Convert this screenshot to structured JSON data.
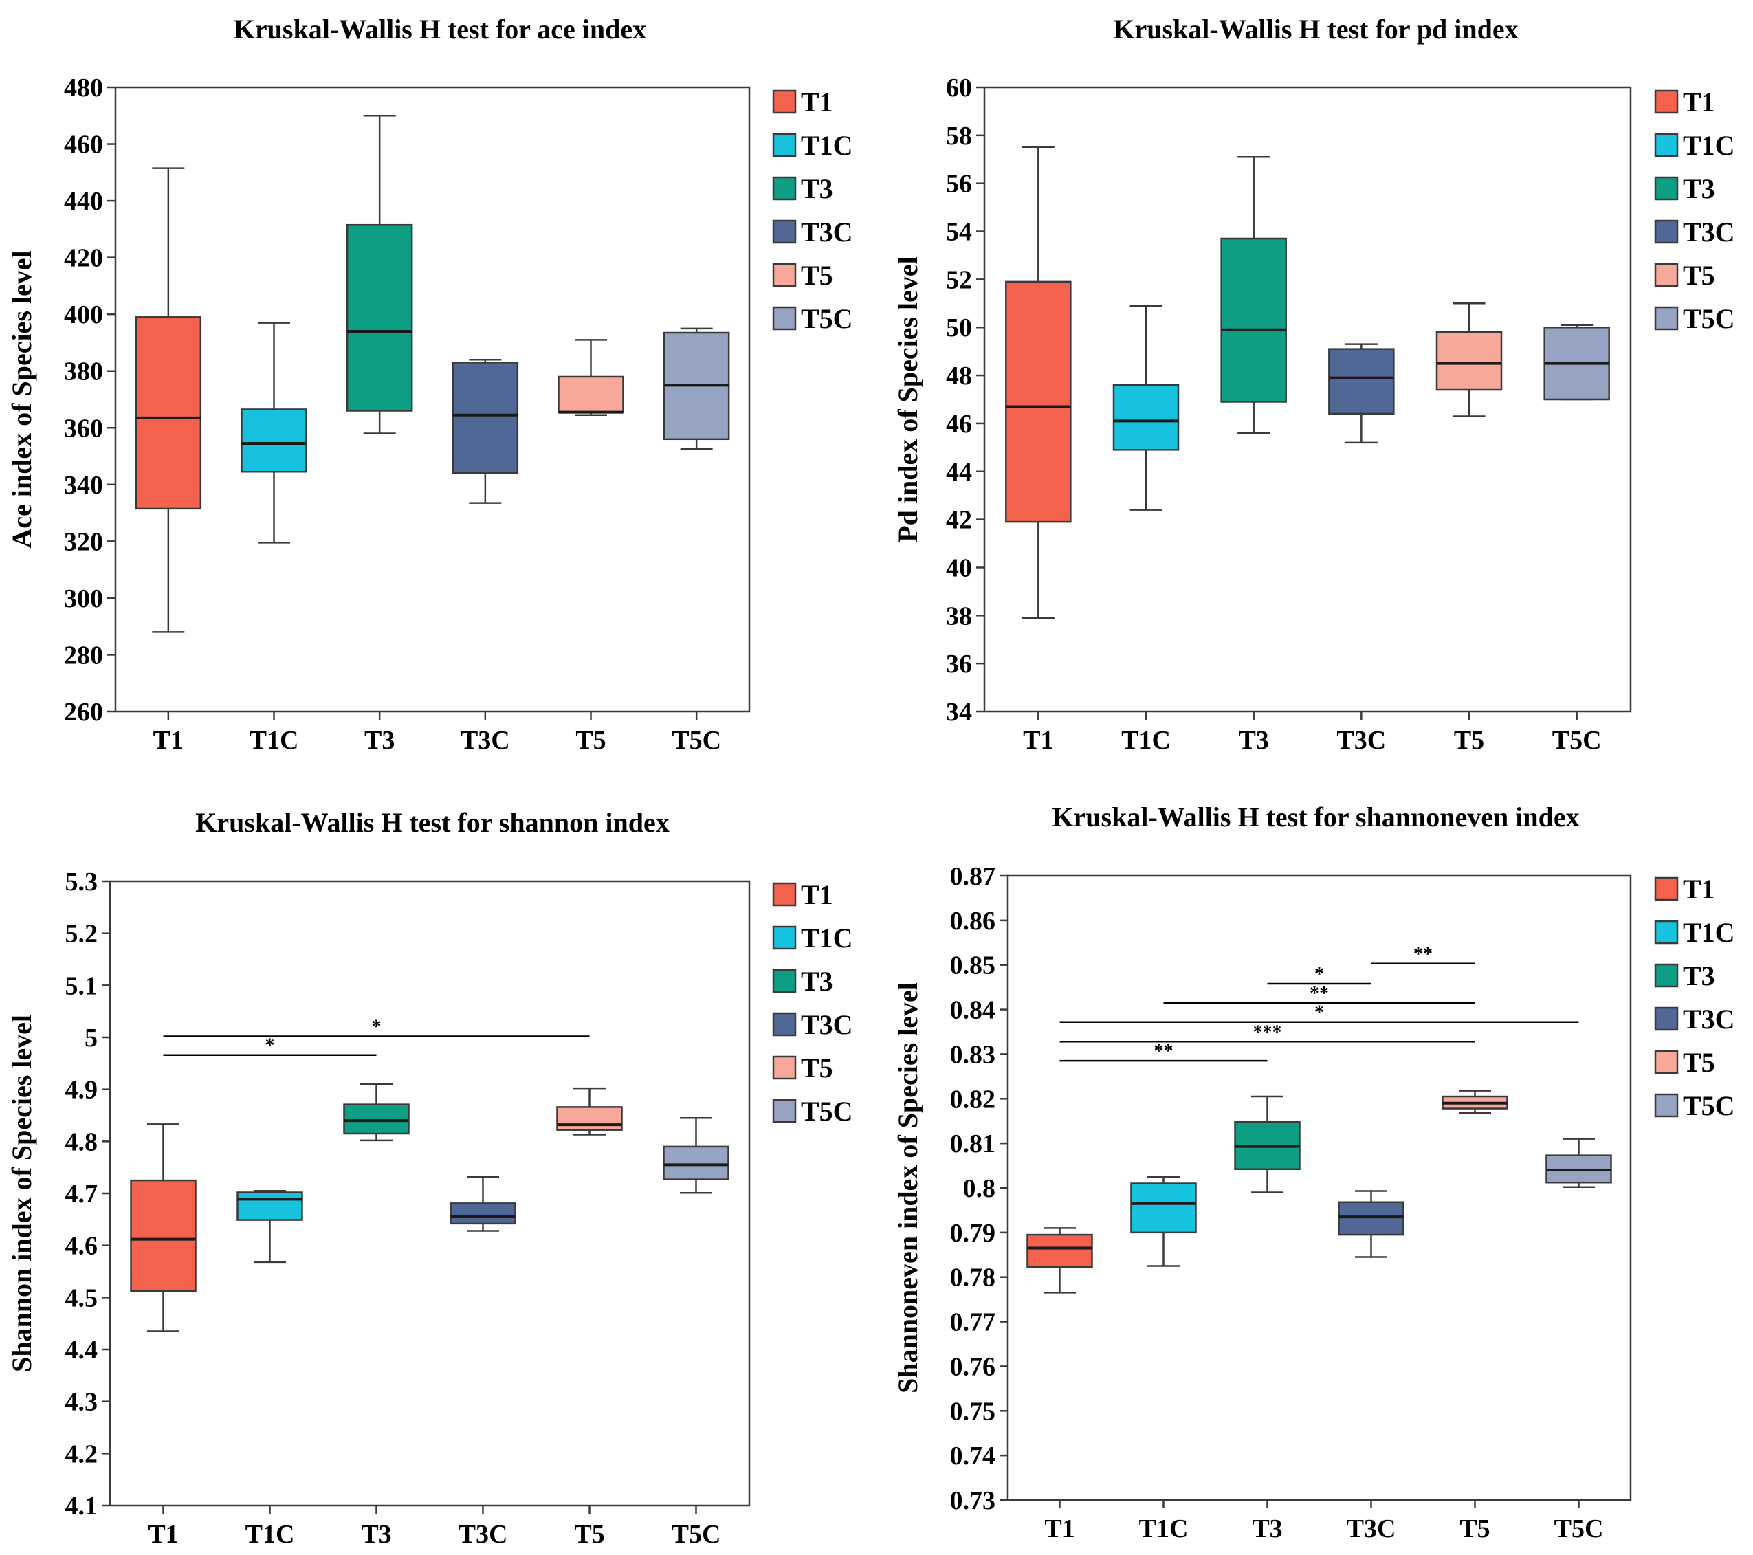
{
  "colors": {
    "T1": "#f4624e",
    "T1C": "#17c2de",
    "T3": "#0e9e84",
    "T3C": "#4f6895",
    "T5": "#f8a898",
    "T5C": "#97a3c2"
  },
  "chart_data": [
    {
      "type": "box",
      "title": "Kruskal-Wallis H test for ace index",
      "ylabel": "Ace index of Species level",
      "categories": [
        "T1",
        "T1C",
        "T3",
        "T3C",
        "T5",
        "T5C"
      ],
      "legend": [
        "T1",
        "T1C",
        "T3",
        "T3C",
        "T5",
        "T5C"
      ],
      "legend_position": "right",
      "ylim": [
        260,
        480
      ],
      "yticks": [
        260,
        280,
        300,
        320,
        340,
        360,
        380,
        400,
        420,
        440,
        460,
        480
      ],
      "ytick_labels": [
        "260",
        "280",
        "300",
        "320",
        "340",
        "360",
        "380",
        "400",
        "420",
        "440",
        "460",
        "480"
      ],
      "boxes": [
        {
          "name": "T1",
          "min": 288,
          "q1": 331.5,
          "median": 363.5,
          "q3": 399,
          "max": 451.5
        },
        {
          "name": "T1C",
          "min": 319.5,
          "q1": 344.5,
          "median": 354.5,
          "q3": 366.5,
          "max": 397
        },
        {
          "name": "T3",
          "min": 358,
          "q1": 366,
          "median": 394,
          "q3": 431.5,
          "max": 470
        },
        {
          "name": "T3C",
          "min": 333.5,
          "q1": 344,
          "median": 364.5,
          "q3": 383,
          "max": 384
        },
        {
          "name": "T5",
          "min": 364.5,
          "q1": 365.5,
          "median": 365.5,
          "q3": 378,
          "max": 391
        },
        {
          "name": "T5C",
          "min": 352.5,
          "q1": 356,
          "median": 375,
          "q3": 393.5,
          "max": 395
        }
      ],
      "significance": []
    },
    {
      "type": "box",
      "title": "Kruskal-Wallis H test for pd index",
      "ylabel": "Pd index of Species level",
      "categories": [
        "T1",
        "T1C",
        "T3",
        "T3C",
        "T5",
        "T5C"
      ],
      "legend": [
        "T1",
        "T1C",
        "T3",
        "T3C",
        "T5",
        "T5C"
      ],
      "legend_position": "right",
      "ylim": [
        34,
        60
      ],
      "yticks": [
        34,
        36,
        38,
        40,
        42,
        44,
        46,
        48,
        50,
        52,
        54,
        56,
        58,
        60
      ],
      "ytick_labels": [
        "34",
        "36",
        "38",
        "40",
        "42",
        "44",
        "46",
        "48",
        "50",
        "52",
        "54",
        "56",
        "58",
        "60"
      ],
      "boxes": [
        {
          "name": "T1",
          "min": 37.9,
          "q1": 41.9,
          "median": 46.7,
          "q3": 51.9,
          "max": 57.5
        },
        {
          "name": "T1C",
          "min": 42.4,
          "q1": 44.9,
          "median": 46.1,
          "q3": 47.6,
          "max": 50.9
        },
        {
          "name": "T3",
          "min": 45.6,
          "q1": 46.9,
          "median": 49.9,
          "q3": 53.7,
          "max": 57.1
        },
        {
          "name": "T3C",
          "min": 45.2,
          "q1": 46.4,
          "median": 47.9,
          "q3": 49.1,
          "max": 49.3
        },
        {
          "name": "T5",
          "min": 46.3,
          "q1": 47.4,
          "median": 48.5,
          "q3": 49.8,
          "max": 51.0
        },
        {
          "name": "T5C",
          "min": 47.0,
          "q1": 47.0,
          "median": 48.5,
          "q3": 50.0,
          "max": 50.1
        }
      ],
      "significance": []
    },
    {
      "type": "box",
      "title": "Kruskal-Wallis H test for shannon index",
      "ylabel": "Shannon index of Species level",
      "categories": [
        "T1",
        "T1C",
        "T3",
        "T3C",
        "T5",
        "T5C"
      ],
      "legend": [
        "T1",
        "T1C",
        "T3",
        "T3C",
        "T5",
        "T5C"
      ],
      "legend_position": "right",
      "ylim": [
        4.1,
        5.3
      ],
      "yticks": [
        4.1,
        4.2,
        4.3,
        4.4,
        4.5,
        4.6,
        4.7,
        4.8,
        4.9,
        5.0,
        5.1,
        5.2,
        5.3
      ],
      "ytick_labels": [
        "4.1",
        "4.2",
        "4.3",
        "4.4",
        "4.5",
        "4.6",
        "4.7",
        "4.8",
        "4.9",
        "5",
        "5.1",
        "5.2",
        "5.3"
      ],
      "boxes": [
        {
          "name": "T1",
          "min": 4.435,
          "q1": 4.512,
          "median": 4.612,
          "q3": 4.725,
          "max": 4.833
        },
        {
          "name": "T1C",
          "min": 4.568,
          "q1": 4.649,
          "median": 4.689,
          "q3": 4.702,
          "max": 4.705
        },
        {
          "name": "T3",
          "min": 4.802,
          "q1": 4.815,
          "median": 4.84,
          "q3": 4.871,
          "max": 4.91
        },
        {
          "name": "T3C",
          "min": 4.628,
          "q1": 4.642,
          "median": 4.655,
          "q3": 4.681,
          "max": 4.732
        },
        {
          "name": "T5",
          "min": 4.813,
          "q1": 4.822,
          "median": 4.832,
          "q3": 4.866,
          "max": 4.902
        },
        {
          "name": "T5C",
          "min": 4.701,
          "q1": 4.727,
          "median": 4.755,
          "q3": 4.79,
          "max": 4.845
        }
      ],
      "significance": [
        {
          "from": "T1",
          "to": "T5",
          "label": "*",
          "y": 5.002
        },
        {
          "from": "T1",
          "to": "T3",
          "label": "*",
          "y": 4.966
        }
      ]
    },
    {
      "type": "box",
      "title": "Kruskal-Wallis H test for shannoneven index",
      "ylabel": "Shannoneven index of Species level",
      "categories": [
        "T1",
        "T1C",
        "T3",
        "T3C",
        "T5",
        "T5C"
      ],
      "legend": [
        "T1",
        "T1C",
        "T3",
        "T3C",
        "T5",
        "T5C"
      ],
      "legend_position": "right",
      "ylim": [
        0.73,
        0.87
      ],
      "yticks": [
        0.73,
        0.74,
        0.75,
        0.76,
        0.77,
        0.78,
        0.79,
        0.8,
        0.81,
        0.82,
        0.83,
        0.84,
        0.85,
        0.86,
        0.87
      ],
      "ytick_labels": [
        "0.73",
        "0.74",
        "0.75",
        "0.76",
        "0.77",
        "0.78",
        "0.79",
        "0.8",
        "0.81",
        "0.82",
        "0.83",
        "0.84",
        "0.85",
        "0.86",
        "0.87"
      ],
      "boxes": [
        {
          "name": "T1",
          "min": 0.7765,
          "q1": 0.7823,
          "median": 0.7865,
          "q3": 0.7895,
          "max": 0.791
        },
        {
          "name": "T1C",
          "min": 0.7825,
          "q1": 0.79,
          "median": 0.7965,
          "q3": 0.801,
          "max": 0.8025
        },
        {
          "name": "T3",
          "min": 0.799,
          "q1": 0.8042,
          "median": 0.8093,
          "q3": 0.8148,
          "max": 0.8205
        },
        {
          "name": "T3C",
          "min": 0.7845,
          "q1": 0.7895,
          "median": 0.7935,
          "q3": 0.7968,
          "max": 0.7993
        },
        {
          "name": "T5",
          "min": 0.8168,
          "q1": 0.8178,
          "median": 0.819,
          "q3": 0.8205,
          "max": 0.8218
        },
        {
          "name": "T5C",
          "min": 0.8002,
          "q1": 0.8012,
          "median": 0.804,
          "q3": 0.8073,
          "max": 0.811
        }
      ],
      "significance": [
        {
          "from": "T3C",
          "to": "T5",
          "label": "**",
          "y": 0.8503
        },
        {
          "from": "T3",
          "to": "T3C",
          "label": "*",
          "y": 0.8458
        },
        {
          "from": "T1C",
          "to": "T5",
          "label": "**",
          "y": 0.8415
        },
        {
          "from": "T1",
          "to": "T5C",
          "label": "*",
          "y": 0.8372
        },
        {
          "from": "T1",
          "to": "T5",
          "label": "***",
          "y": 0.8328
        },
        {
          "from": "T1",
          "to": "T3",
          "label": "**",
          "y": 0.8285
        }
      ]
    }
  ]
}
